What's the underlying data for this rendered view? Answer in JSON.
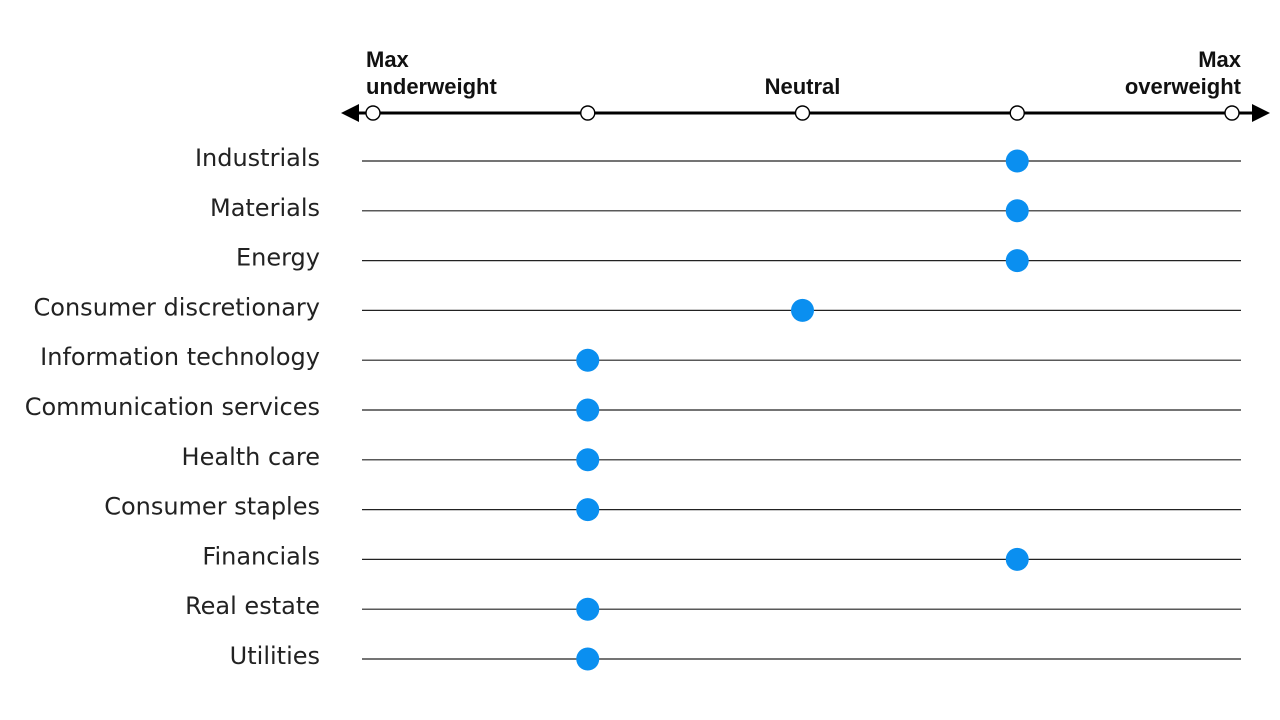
{
  "chart_data": {
    "type": "scatter",
    "scale_points": [
      1,
      2,
      3,
      4,
      5
    ],
    "scale_labels": [
      {
        "value": 1,
        "lines": [
          "Max",
          "underweight"
        ],
        "align": "start"
      },
      {
        "value": 3,
        "lines": [
          "Neutral"
        ],
        "align": "middle"
      },
      {
        "value": 5,
        "lines": [
          "Max",
          "overweight"
        ],
        "align": "end"
      }
    ],
    "categories": [
      "Industrials",
      "Materials",
      "Energy",
      "Consumer discretionary",
      "Information technology",
      "Communication services",
      "Health care",
      "Consumer staples",
      "Financials",
      "Real estate",
      "Utilities"
    ],
    "values": [
      4,
      4,
      4,
      3,
      2,
      2,
      2,
      2,
      4,
      2,
      2
    ],
    "xlim": [
      1,
      5
    ],
    "colors": {
      "marker": "#0a8ff0",
      "axis": "#000000"
    }
  }
}
